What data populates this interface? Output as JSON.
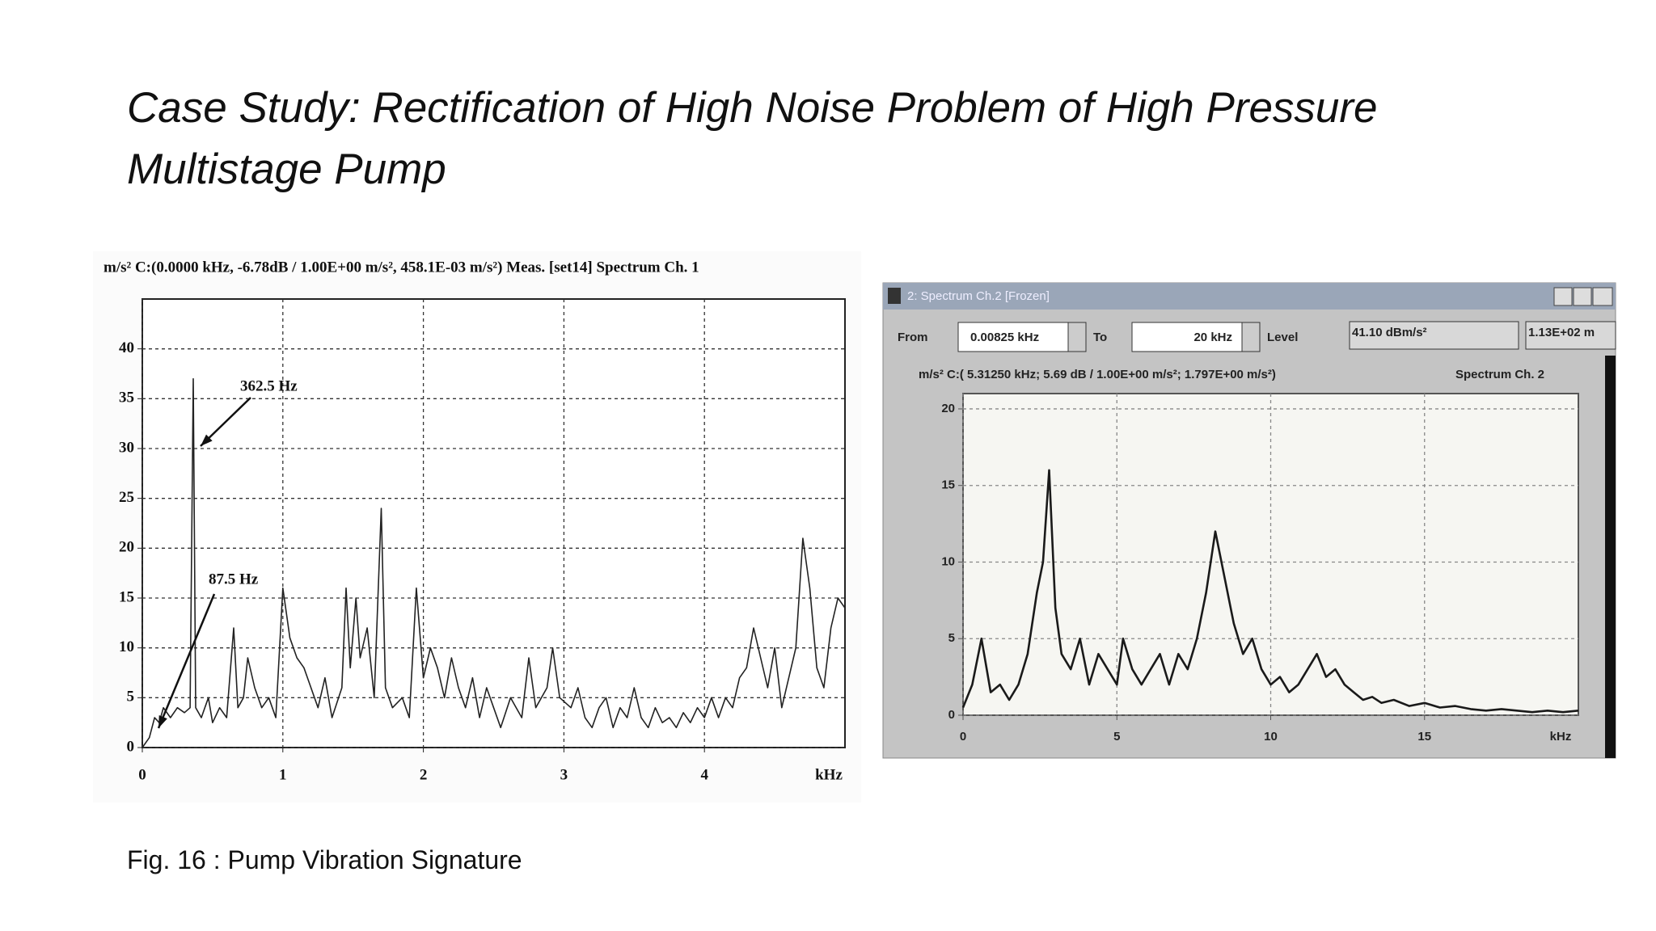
{
  "title": "Case Study: Rectification of High Noise Problem of High Pressure Multistage Pump",
  "caption": "Fig. 16 : Pump Vibration Signature",
  "chart_data": [
    {
      "type": "line",
      "title": "m/s² C:(0.0000  kHz, -6.78dB / 1.00E+00 m/s², 458.1E-03   m/s²)    Meas. [set14] Spectrum Ch. 1",
      "x_unit_label": "kHz",
      "annotations": [
        "362.5 Hz",
        "87.5 Hz"
      ],
      "xlim": [
        0,
        5
      ],
      "xticks": [
        0,
        1,
        2,
        3,
        4
      ],
      "ylim": [
        0,
        45
      ],
      "yticks": [
        0,
        5,
        10,
        15,
        20,
        25,
        30,
        35,
        40
      ],
      "grid": true,
      "color": "#222222",
      "x": [
        0,
        0.05,
        0.0875,
        0.12,
        0.15,
        0.2,
        0.25,
        0.3,
        0.34,
        0.3625,
        0.38,
        0.42,
        0.47,
        0.5,
        0.55,
        0.6,
        0.65,
        0.68,
        0.72,
        0.75,
        0.8,
        0.85,
        0.9,
        0.95,
        1.0,
        1.05,
        1.1,
        1.15,
        1.2,
        1.25,
        1.3,
        1.35,
        1.42,
        1.45,
        1.48,
        1.52,
        1.55,
        1.6,
        1.65,
        1.7,
        1.73,
        1.78,
        1.85,
        1.9,
        1.95,
        2.0,
        2.05,
        2.1,
        2.15,
        2.2,
        2.25,
        2.3,
        2.35,
        2.4,
        2.45,
        2.5,
        2.55,
        2.62,
        2.7,
        2.75,
        2.8,
        2.88,
        2.92,
        2.97,
        3.05,
        3.1,
        3.15,
        3.2,
        3.25,
        3.3,
        3.35,
        3.4,
        3.45,
        3.5,
        3.55,
        3.6,
        3.65,
        3.7,
        3.75,
        3.8,
        3.85,
        3.9,
        3.95,
        4.0,
        4.05,
        4.1,
        4.15,
        4.2,
        4.25,
        4.3,
        4.35,
        4.4,
        4.45,
        4.5,
        4.55,
        4.6,
        4.65,
        4.7,
        4.75,
        4.8,
        4.85,
        4.9,
        4.95,
        5.0
      ],
      "values": [
        0,
        1,
        3,
        2.5,
        4,
        3,
        4,
        3.5,
        4,
        37,
        4,
        3,
        5,
        2.5,
        4,
        3,
        12,
        4,
        5,
        9,
        6,
        4,
        5,
        3,
        16,
        11,
        9,
        8,
        6,
        4,
        7,
        3,
        6,
        16,
        8,
        15,
        9,
        12,
        5,
        24,
        6,
        4,
        5,
        3,
        16,
        7,
        10,
        8,
        5,
        9,
        6,
        4,
        7,
        3,
        6,
        4,
        2,
        5,
        3,
        9,
        4,
        6,
        10,
        5,
        4,
        6,
        3,
        2,
        4,
        5,
        2,
        4,
        3,
        6,
        3,
        2,
        4,
        2.5,
        3,
        2,
        3.5,
        2.5,
        4,
        3,
        5,
        3,
        5,
        4,
        7,
        8,
        12,
        9,
        6,
        10,
        4,
        7,
        10,
        21,
        16,
        8,
        6,
        12,
        15,
        14
      ]
    },
    {
      "type": "line",
      "window_title": "2: Spectrum Ch.2 [Frozen]",
      "from_label": "From",
      "from_value": "0.00825 kHz",
      "to_label": "To",
      "to_value": "20 kHz",
      "level_label": "Level",
      "level_value": "41.10 dBm/s²",
      "extra_value": "1.13E+02 m",
      "title": "m/s²  C:(  5.31250 kHz;      5.69 dB  / 1.00E+00 m/s²;  1.797E+00  m/s²)",
      "title_right": "Spectrum Ch. 2",
      "x_unit_label": "kHz",
      "xlim": [
        0,
        20
      ],
      "xticks": [
        0,
        5,
        10,
        15
      ],
      "ylim": [
        0,
        21
      ],
      "yticks": [
        0,
        5,
        10,
        15,
        20
      ],
      "grid": true,
      "color": "#1a1a1a",
      "x": [
        0,
        0.3,
        0.6,
        0.9,
        1.2,
        1.5,
        1.8,
        2.1,
        2.4,
        2.6,
        2.8,
        3.0,
        3.2,
        3.5,
        3.8,
        4.1,
        4.4,
        4.7,
        5.0,
        5.2,
        5.5,
        5.8,
        6.1,
        6.4,
        6.7,
        7.0,
        7.3,
        7.6,
        7.9,
        8.2,
        8.5,
        8.8,
        9.1,
        9.4,
        9.7,
        10.0,
        10.3,
        10.6,
        10.9,
        11.2,
        11.5,
        11.8,
        12.1,
        12.4,
        12.7,
        13.0,
        13.3,
        13.6,
        14.0,
        14.5,
        15.0,
        15.5,
        16,
        16.5,
        17,
        17.5,
        18,
        18.5,
        19,
        19.5,
        20
      ],
      "values": [
        0.5,
        2,
        5,
        1.5,
        2,
        1,
        2,
        4,
        8,
        10,
        16,
        7,
        4,
        3,
        5,
        2,
        4,
        3,
        2,
        5,
        3,
        2,
        3,
        4,
        2,
        4,
        3,
        5,
        8,
        12,
        9,
        6,
        4,
        5,
        3,
        2,
        2.5,
        1.5,
        2,
        3,
        4,
        2.5,
        3,
        2,
        1.5,
        1,
        1.2,
        0.8,
        1,
        0.6,
        0.8,
        0.5,
        0.6,
        0.4,
        0.3,
        0.4,
        0.3,
        0.2,
        0.3,
        0.2,
        0.3
      ]
    }
  ]
}
